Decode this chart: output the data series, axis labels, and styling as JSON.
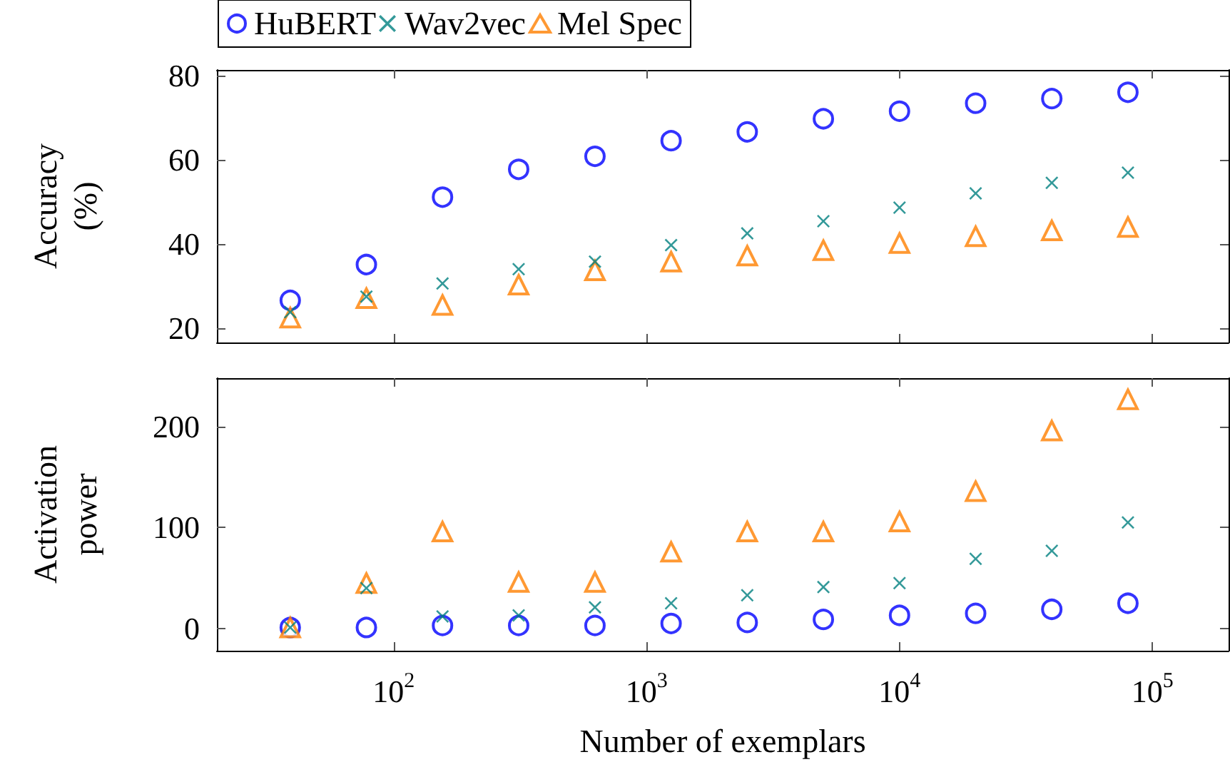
{
  "chart_data": [
    {
      "type": "scatter",
      "ylabel": "Accuracy (%)",
      "legend": "top left",
      "grid": false,
      "tick_labels": "y",
      "log": "x",
      "x": [
        39,
        78,
        156,
        312,
        625,
        1250,
        2500,
        5000,
        10000,
        20000,
        40000,
        80000
      ],
      "xlim": [
        20,
        200000
      ],
      "xticks": [
        {
          "value": 100,
          "label": null
        },
        {
          "value": 1000,
          "label": null
        },
        {
          "value": 10000,
          "label": null
        },
        {
          "value": 100000,
          "label": null
        }
      ],
      "ylim": [
        16.6,
        81.3
      ],
      "yticks": [
        20,
        40,
        60,
        80
      ],
      "series": [
        {
          "name": "HuBERT",
          "color": "#0000ff",
          "marker": "circle",
          "values": [
            26.6,
            35.1,
            51.1,
            57.7,
            60.8,
            64.5,
            66.6,
            69.7,
            71.5,
            73.4,
            74.5,
            76.0
          ]
        },
        {
          "name": "Wav2vec",
          "color": "#008080",
          "marker": "cross",
          "values": [
            23.8,
            27.5,
            30.6,
            34.0,
            35.8,
            39.7,
            42.5,
            45.4,
            48.6,
            52.0,
            54.5,
            56.9
          ]
        },
        {
          "name": "Mel Spec",
          "color": "#ff8000",
          "marker": "triangle",
          "values": [
            22.5,
            27.1,
            25.5,
            30.3,
            33.7,
            35.8,
            37.2,
            38.5,
            40.2,
            41.8,
            43.2,
            44.0
          ]
        }
      ]
    },
    {
      "type": "scatter",
      "ylabel": "Activation power",
      "xlabel": "Number of exemplars",
      "grid": false,
      "log": "x",
      "x": [
        39,
        78,
        156,
        312,
        625,
        1250,
        2500,
        5000,
        10000,
        20000,
        40000,
        80000
      ],
      "xlim": [
        20,
        200000
      ],
      "xticks": [
        {
          "value": 100,
          "label": "10$^{2}$"
        },
        {
          "value": 1000,
          "label": "10$^{3}$"
        },
        {
          "value": 10000,
          "label": "10$^{4}$"
        },
        {
          "value": 100000,
          "label": "10$^{5}$"
        }
      ],
      "ylim": [
        -22,
        248
      ],
      "yticks": [
        0,
        100,
        200
      ],
      "series": [
        {
          "color": "#0000ff",
          "marker": "circle",
          "values": [
            1,
            1,
            3,
            3,
            3,
            5,
            6,
            9,
            13,
            15,
            19,
            25
          ]
        },
        {
          "color": "#008080",
          "marker": "cross",
          "values": [
            1,
            40,
            12,
            13,
            21,
            25,
            33,
            41,
            45,
            69,
            77,
            105
          ]
        },
        {
          "color": "#ff8000",
          "marker": "triangle",
          "values": [
            1,
            45,
            96,
            46,
            46,
            76,
            96,
            96,
            106,
            136,
            196,
            227
          ]
        }
      ]
    }
  ]
}
